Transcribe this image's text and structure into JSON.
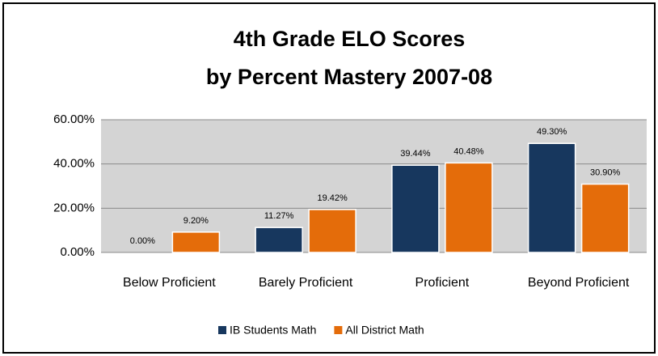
{
  "chart_data": {
    "type": "bar",
    "title": [
      "4th Grade ELO Scores",
      "by Percent Mastery 2007-08"
    ],
    "categories": [
      "Below Proficient",
      "Barely Proficient",
      "Proficient",
      "Beyond Proficient"
    ],
    "series": [
      {
        "name": "IB Students Math",
        "color": "#17375e",
        "values": [
          0,
          11.27,
          39.44,
          49.3
        ],
        "value_labels": [
          "0.00%",
          "11.27%",
          "39.44%",
          "49.30%"
        ]
      },
      {
        "name": "All District Math",
        "color": "#e46c0a",
        "values": [
          9.2,
          19.42,
          40.48,
          30.9
        ],
        "value_labels": [
          "9.20%",
          "19.42%",
          "40.48%",
          "30.90%"
        ]
      }
    ],
    "ylim": [
      0,
      60
    ],
    "yticks": [
      {
        "value": 0,
        "label": "0.00%"
      },
      {
        "value": 20,
        "label": "20.00%"
      },
      {
        "value": 40,
        "label": "40.00%"
      },
      {
        "value": 60,
        "label": "60.00%"
      }
    ],
    "grid": true,
    "legend": "bottom"
  }
}
